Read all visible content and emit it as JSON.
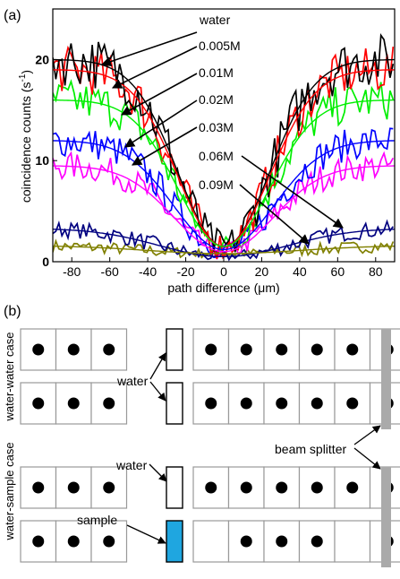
{
  "panel_a": {
    "label": "(a)",
    "ylabel": "coincidence counts (s",
    "ylabel_sup": "-1",
    "ylabel_end": ")",
    "xlabel": "path difference (μm)",
    "xticks": [
      "-80",
      "-60",
      "-40",
      "-20",
      "0",
      "20",
      "40",
      "60",
      "80"
    ],
    "yticks": [
      "0",
      "10",
      "20"
    ],
    "annotations": [
      "water",
      "0.005M",
      "0.01M",
      "0.02M",
      "0.03M",
      "0.06M",
      "0.09M"
    ]
  },
  "chart_data": {
    "type": "line",
    "xlabel": "path difference (μm)",
    "ylabel": "coincidence counts (s-1)",
    "xlim": [
      -90,
      90
    ],
    "ylim": [
      0,
      25
    ],
    "grid": false,
    "series": [
      {
        "name": "water",
        "color": "#000000",
        "baseline": 20.0,
        "dip_min": 1.5,
        "dip_width": 24,
        "noise": 2.6
      },
      {
        "name": "0.005M",
        "color": "#ff0000",
        "baseline": 19.0,
        "dip_min": 1.5,
        "dip_width": 24,
        "noise": 2.3
      },
      {
        "name": "0.01M",
        "color": "#00ee00",
        "baseline": 16.0,
        "dip_min": 1.5,
        "dip_width": 24,
        "noise": 2.0
      },
      {
        "name": "0.02M",
        "color": "#0000ff",
        "baseline": 12.0,
        "dip_min": 1.2,
        "dip_width": 26,
        "noise": 1.6
      },
      {
        "name": "0.03M",
        "color": "#ff00ff",
        "baseline": 9.5,
        "dip_min": 1.0,
        "dip_width": 26,
        "noise": 1.4
      },
      {
        "name": "0.06M",
        "color": "#000080",
        "baseline": 3.3,
        "dip_min": 0.5,
        "dip_width": 34,
        "noise": 0.8
      },
      {
        "name": "0.09M",
        "color": "#808000",
        "baseline": 1.6,
        "dip_min": 0.8,
        "dip_width": 40,
        "noise": 0.6
      }
    ]
  },
  "panel_b": {
    "label": "(b)",
    "water_water_case": "water-water case",
    "water_sample_case": "water-sample case",
    "water_label_1": "water",
    "water_label_2": "water",
    "sample_label": "sample",
    "beam_splitter_label": "beam splitter",
    "sample_color": "#1fa6e0",
    "splitter_color": "#aaaaaa",
    "rows": [
      {
        "left": [
          1,
          1,
          1
        ],
        "right": [
          1,
          1,
          1,
          1,
          1,
          1
        ]
      },
      {
        "left": [
          1,
          1,
          1
        ],
        "right": [
          1,
          1,
          1,
          1,
          1,
          1
        ]
      },
      {
        "left": [
          1,
          1,
          1
        ],
        "right": [
          1,
          1,
          1,
          1,
          1,
          1
        ]
      },
      {
        "left": [
          1,
          1,
          1
        ],
        "right": [
          0,
          1,
          1,
          1,
          0,
          1
        ]
      }
    ]
  }
}
